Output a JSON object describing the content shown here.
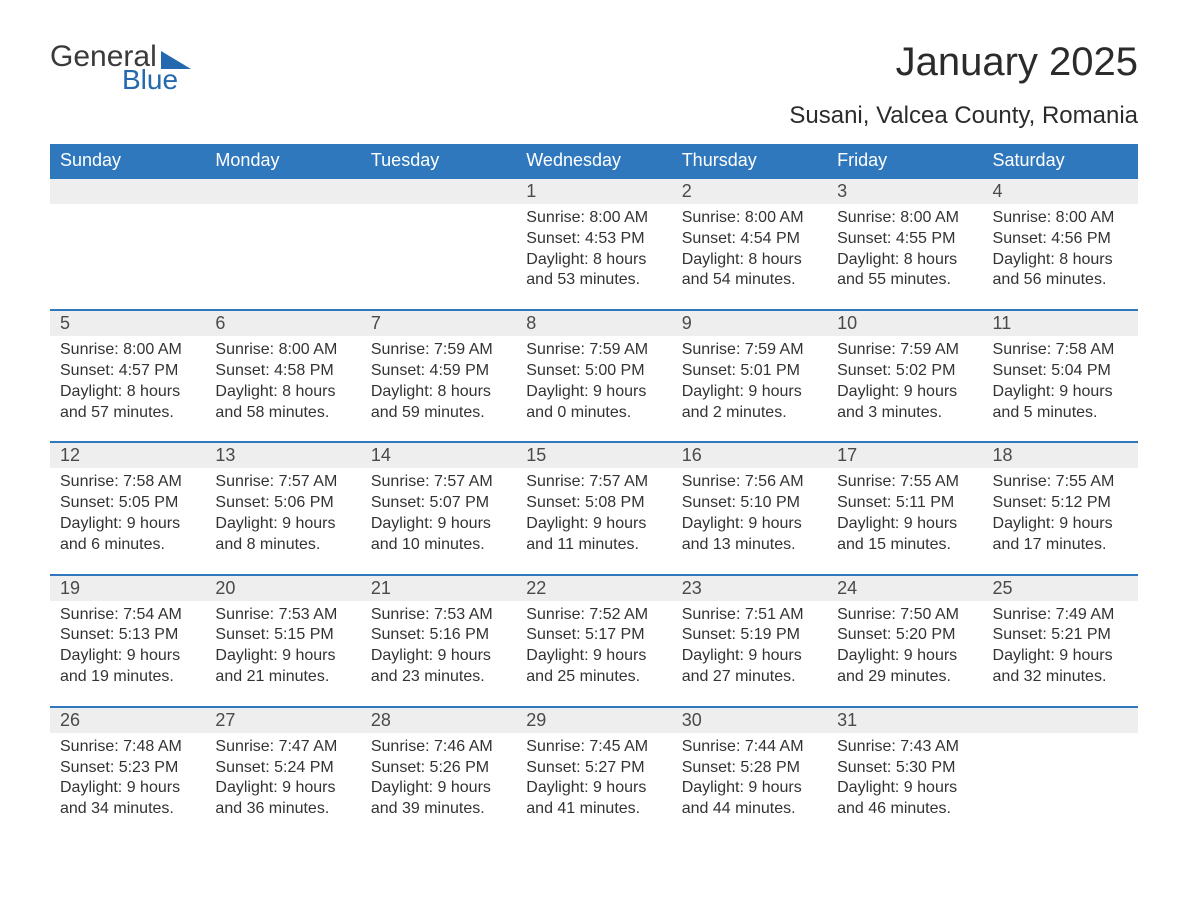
{
  "logo": {
    "text1": "General",
    "text2": "Blue",
    "color": "#2468b0"
  },
  "title": "January 2025",
  "subtitle": "Susani, Valcea County, Romania",
  "header_bg": "#2f78bd",
  "header_fg": "#ffffff",
  "daynum_bg": "#eeeeee",
  "row_border": "#2f78bd",
  "text_color": "#333333",
  "days": [
    "Sunday",
    "Monday",
    "Tuesday",
    "Wednesday",
    "Thursday",
    "Friday",
    "Saturday"
  ],
  "weeks": [
    [
      null,
      null,
      null,
      {
        "n": "1",
        "sr": "8:00 AM",
        "ss": "4:53 PM",
        "dl": "8 hours and 53 minutes."
      },
      {
        "n": "2",
        "sr": "8:00 AM",
        "ss": "4:54 PM",
        "dl": "8 hours and 54 minutes."
      },
      {
        "n": "3",
        "sr": "8:00 AM",
        "ss": "4:55 PM",
        "dl": "8 hours and 55 minutes."
      },
      {
        "n": "4",
        "sr": "8:00 AM",
        "ss": "4:56 PM",
        "dl": "8 hours and 56 minutes."
      }
    ],
    [
      {
        "n": "5",
        "sr": "8:00 AM",
        "ss": "4:57 PM",
        "dl": "8 hours and 57 minutes."
      },
      {
        "n": "6",
        "sr": "8:00 AM",
        "ss": "4:58 PM",
        "dl": "8 hours and 58 minutes."
      },
      {
        "n": "7",
        "sr": "7:59 AM",
        "ss": "4:59 PM",
        "dl": "8 hours and 59 minutes."
      },
      {
        "n": "8",
        "sr": "7:59 AM",
        "ss": "5:00 PM",
        "dl": "9 hours and 0 minutes."
      },
      {
        "n": "9",
        "sr": "7:59 AM",
        "ss": "5:01 PM",
        "dl": "9 hours and 2 minutes."
      },
      {
        "n": "10",
        "sr": "7:59 AM",
        "ss": "5:02 PM",
        "dl": "9 hours and 3 minutes."
      },
      {
        "n": "11",
        "sr": "7:58 AM",
        "ss": "5:04 PM",
        "dl": "9 hours and 5 minutes."
      }
    ],
    [
      {
        "n": "12",
        "sr": "7:58 AM",
        "ss": "5:05 PM",
        "dl": "9 hours and 6 minutes."
      },
      {
        "n": "13",
        "sr": "7:57 AM",
        "ss": "5:06 PM",
        "dl": "9 hours and 8 minutes."
      },
      {
        "n": "14",
        "sr": "7:57 AM",
        "ss": "5:07 PM",
        "dl": "9 hours and 10 minutes."
      },
      {
        "n": "15",
        "sr": "7:57 AM",
        "ss": "5:08 PM",
        "dl": "9 hours and 11 minutes."
      },
      {
        "n": "16",
        "sr": "7:56 AM",
        "ss": "5:10 PM",
        "dl": "9 hours and 13 minutes."
      },
      {
        "n": "17",
        "sr": "7:55 AM",
        "ss": "5:11 PM",
        "dl": "9 hours and 15 minutes."
      },
      {
        "n": "18",
        "sr": "7:55 AM",
        "ss": "5:12 PM",
        "dl": "9 hours and 17 minutes."
      }
    ],
    [
      {
        "n": "19",
        "sr": "7:54 AM",
        "ss": "5:13 PM",
        "dl": "9 hours and 19 minutes."
      },
      {
        "n": "20",
        "sr": "7:53 AM",
        "ss": "5:15 PM",
        "dl": "9 hours and 21 minutes."
      },
      {
        "n": "21",
        "sr": "7:53 AM",
        "ss": "5:16 PM",
        "dl": "9 hours and 23 minutes."
      },
      {
        "n": "22",
        "sr": "7:52 AM",
        "ss": "5:17 PM",
        "dl": "9 hours and 25 minutes."
      },
      {
        "n": "23",
        "sr": "7:51 AM",
        "ss": "5:19 PM",
        "dl": "9 hours and 27 minutes."
      },
      {
        "n": "24",
        "sr": "7:50 AM",
        "ss": "5:20 PM",
        "dl": "9 hours and 29 minutes."
      },
      {
        "n": "25",
        "sr": "7:49 AM",
        "ss": "5:21 PM",
        "dl": "9 hours and 32 minutes."
      }
    ],
    [
      {
        "n": "26",
        "sr": "7:48 AM",
        "ss": "5:23 PM",
        "dl": "9 hours and 34 minutes."
      },
      {
        "n": "27",
        "sr": "7:47 AM",
        "ss": "5:24 PM",
        "dl": "9 hours and 36 minutes."
      },
      {
        "n": "28",
        "sr": "7:46 AM",
        "ss": "5:26 PM",
        "dl": "9 hours and 39 minutes."
      },
      {
        "n": "29",
        "sr": "7:45 AM",
        "ss": "5:27 PM",
        "dl": "9 hours and 41 minutes."
      },
      {
        "n": "30",
        "sr": "7:44 AM",
        "ss": "5:28 PM",
        "dl": "9 hours and 44 minutes."
      },
      {
        "n": "31",
        "sr": "7:43 AM",
        "ss": "5:30 PM",
        "dl": "9 hours and 46 minutes."
      },
      null
    ]
  ],
  "labels": {
    "sunrise": "Sunrise:",
    "sunset": "Sunset:",
    "daylight": "Daylight:"
  }
}
